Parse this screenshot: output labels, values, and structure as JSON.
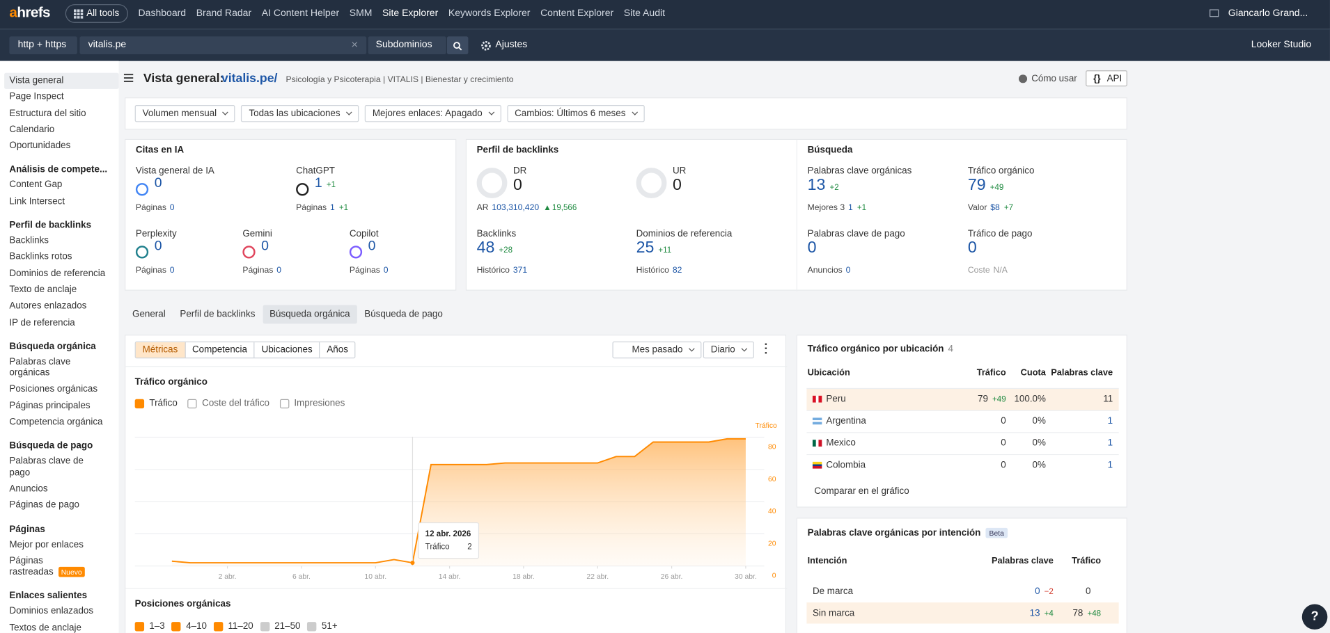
{
  "topnav": {
    "logo": "ahrefs",
    "all_tools": "All tools",
    "items": [
      "Dashboard",
      "Brand Radar",
      "AI Content Helper",
      "SMM",
      "Site Explorer",
      "Keywords Explorer",
      "Content Explorer",
      "Site Audit"
    ],
    "user": "Giancarlo Grand..."
  },
  "toolbar": {
    "protocol": "http + https",
    "target": "vitalis.pe",
    "mode": "Subdominios",
    "settings": "Ajustes",
    "looker": "Looker Studio"
  },
  "sidebar": {
    "items": [
      "Vista general",
      "Page Inspect",
      "Estructura del sitio",
      "Calendario",
      "Oportunidades"
    ],
    "groups": [
      {
        "title": "Análisis de compete...",
        "items": [
          "Content Gap",
          "Link Intersect"
        ]
      },
      {
        "title": "Perfil de backlinks",
        "items": [
          "Backlinks",
          "Backlinks rotos",
          "Dominios de referencia",
          "Texto de anclaje",
          "Autores enlazados",
          "IP de referencia"
        ]
      },
      {
        "title": "Búsqueda orgánica",
        "items": [
          "Palabras clave orgánicas",
          "Posiciones orgánicas",
          "Páginas principales",
          "Competencia orgánica"
        ]
      },
      {
        "title": "Búsqueda de pago",
        "items": [
          "Palabras clave de pago",
          "Anuncios",
          "Páginas de pago"
        ]
      },
      {
        "title": "Páginas",
        "items": [
          "Mejor por enlaces",
          {
            "label": "Páginas rastreadas",
            "badge": "Nuevo"
          }
        ]
      },
      {
        "title": "Enlaces salientes",
        "items": [
          "Dominios enlazados",
          "Textos de anclaje salientes"
        ]
      }
    ]
  },
  "header": {
    "title": "Vista general:",
    "domain": "vitalis.pe/",
    "description": "Psicología y Psicoterapia | VITALIS | Bienestar y crecimiento",
    "help": "Cómo usar",
    "api": "API"
  },
  "filters": [
    "Volumen mensual",
    "Todas las ubicaciones",
    "Mejores enlaces: Apagado",
    "Cambios: Últimos 6 meses"
  ],
  "cards": [
    {
      "title": "Citas en IA",
      "metrics": [
        {
          "label": "Vista general de IA",
          "value": "0",
          "sub_label": "Páginas",
          "sub_value": "0"
        },
        {
          "label": "ChatGPT",
          "value": "1",
          "delta": "+1",
          "sub_label": "Páginas",
          "sub_value": "1",
          "sub_delta": "+1"
        },
        {
          "label": "Perplexity",
          "value": "0",
          "sub_label": "Páginas",
          "sub_value": "0"
        },
        {
          "label": "Gemini",
          "value": "0",
          "sub_label": "Páginas",
          "sub_value": "0"
        },
        {
          "label": "Copilot",
          "value": "0",
          "sub_label": "Páginas",
          "sub_value": "0"
        }
      ]
    },
    {
      "title": "Perfil de backlinks",
      "metrics": [
        {
          "label": "DR",
          "value": "0",
          "sub_label": "AR",
          "sub_value": "103,310,420",
          "sub_delta": "19,566"
        },
        {
          "label": "UR",
          "value": "0"
        },
        {
          "label": "Backlinks",
          "value": "48",
          "delta": "+28",
          "sub_label": "Histórico",
          "sub_value": "371"
        },
        {
          "label": "Dominios de referencia",
          "value": "25",
          "delta": "+11",
          "sub_label": "Histórico",
          "sub_value": "82"
        }
      ]
    },
    {
      "title": "Búsqueda",
      "metrics": [
        {
          "label": "Palabras clave orgánicas",
          "value": "13",
          "delta": "+2",
          "sub_label": "Mejores 3",
          "sub_value": "1",
          "sub_delta": "+1"
        },
        {
          "label": "Tráfico orgánico",
          "value": "79",
          "delta": "+49",
          "sub_label": "Valor",
          "sub_value": "$8",
          "sub_delta": "+7"
        },
        {
          "label": "Palabras clave de pago",
          "value": "0",
          "sub_label": "Anuncios",
          "sub_value": "0"
        },
        {
          "label": "Tráfico de pago",
          "value": "0",
          "sub_label": "Coste",
          "sub_value": "N/A"
        }
      ]
    }
  ],
  "tabs": [
    "General",
    "Perfil de backlinks",
    "Búsqueda orgánica",
    "Búsqueda de pago"
  ],
  "chart_panel": {
    "modes": [
      "Métricas",
      "Competencia",
      "Ubicaciones",
      "Años"
    ],
    "period": "Mes pasado",
    "interval": "Diario",
    "section": "Tráfico orgánico",
    "metric_toggles": [
      "Tráfico",
      "Coste del tráfico",
      "Impresiones"
    ],
    "positions_title": "Posiciones orgánicas",
    "position_toggles": [
      "1–3",
      "4–10",
      "11–20",
      "21–50",
      "51+"
    ]
  },
  "chart_data": {
    "type": "area",
    "y_label": "Tráfico",
    "grid": true,
    "x": [
      -1,
      0,
      1,
      2,
      3,
      4,
      5,
      6,
      7,
      8,
      9,
      10,
      11,
      12,
      13,
      14,
      15,
      16,
      17,
      18,
      19,
      20,
      21,
      22,
      23,
      24,
      25,
      26,
      27,
      28,
      29,
      30
    ],
    "series": [
      {
        "name": "Tráfico",
        "color": "#ff8a00",
        "values": [
          3,
          2,
          2,
          2,
          2,
          2,
          2,
          2,
          2,
          2,
          2,
          2,
          4,
          2,
          63,
          63,
          63,
          63,
          64,
          64,
          64,
          64,
          64,
          64,
          68,
          68,
          77,
          77,
          77,
          77,
          79,
          79
        ]
      }
    ],
    "xlim": [
      -3,
      31
    ],
    "xticks": [
      {
        "value": 2,
        "label": "2 abr."
      },
      {
        "value": 6,
        "label": "6 abr."
      },
      {
        "value": 10,
        "label": "10 abr."
      },
      {
        "value": 14,
        "label": "14 abr."
      },
      {
        "value": 18,
        "label": "18 abr."
      },
      {
        "value": 22,
        "label": "22 abr."
      },
      {
        "value": 26,
        "label": "26 abr."
      },
      {
        "value": 30,
        "label": "30 abr."
      }
    ],
    "ylim": [
      0,
      85
    ],
    "yticks": [
      0,
      20,
      40,
      60,
      80
    ],
    "tooltip": {
      "title": "12 abr. 2026",
      "label": "Tráfico"
    }
  },
  "location_table": {
    "title": "Tráfico orgánico por ubicación",
    "count": "4",
    "headers": [
      "Ubicación",
      "Tráfico",
      "Cuota",
      "Palabras clave"
    ],
    "rows": [
      {
        "country": "Peru",
        "traffic": "79",
        "delta": "+49",
        "share": "100.0%",
        "keywords": "11"
      },
      {
        "country": "Argentina",
        "traffic": "0",
        "share": "0%",
        "keywords": "1"
      },
      {
        "country": "Mexico",
        "traffic": "0",
        "share": "0%",
        "keywords": "1"
      },
      {
        "country": "Colombia",
        "traffic": "0",
        "share": "0%",
        "keywords": "1"
      }
    ],
    "footer": "Comparar en el gráfico"
  },
  "intent_table": {
    "title": "Palabras clave orgánicas por intención",
    "badge": "Beta",
    "headers": [
      "Intención",
      "Palabras clave",
      "Tráfico"
    ],
    "rows": [
      {
        "intent": "De marca",
        "keywords": "0",
        "keywords_delta": "−2",
        "traffic": "0"
      },
      {
        "intent": "Sin marca",
        "keywords": "13",
        "keywords_delta": "+4",
        "traffic": "78",
        "traffic_delta": "+48"
      }
    ]
  }
}
